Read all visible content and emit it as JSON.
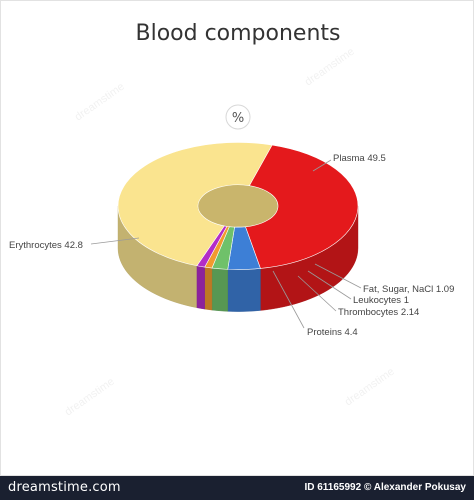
{
  "title": "Blood components",
  "unit_label": "%",
  "colors": {
    "plasma": "#fae48f",
    "erythrocytes": "#e4191c",
    "proteins": "#3d7fd6",
    "thrombocytes": "#6fc16a",
    "leukocytes": "#f29a2e",
    "other": "#b32cc8"
  },
  "chart_data": {
    "type": "pie",
    "title": "Blood components",
    "unit": "%",
    "slices": [
      {
        "label": "Plasma",
        "value": 49.5
      },
      {
        "label": "Erythrocytes",
        "value": 42.8
      },
      {
        "label": "Proteins",
        "value": 4.4
      },
      {
        "label": "Thrombocytes",
        "value": 2.14
      },
      {
        "label": "Leukocytes",
        "value": 1
      },
      {
        "label": "Fat, Sugar, NaCl",
        "value": 1.09
      }
    ]
  },
  "labels": {
    "plasma": "Plasma 49.5",
    "erythrocytes": "Erythrocytes 42.8",
    "proteins": "Proteins 4.4",
    "thrombocytes": "Thrombocytes 2.14",
    "leukocytes": "Leukocytes 1",
    "other": "Fat, Sugar, NaCl 1.09"
  },
  "footer": {
    "brand": "dreamstime.com",
    "credit": "ID 61165992 © Alexander Pokusay"
  }
}
